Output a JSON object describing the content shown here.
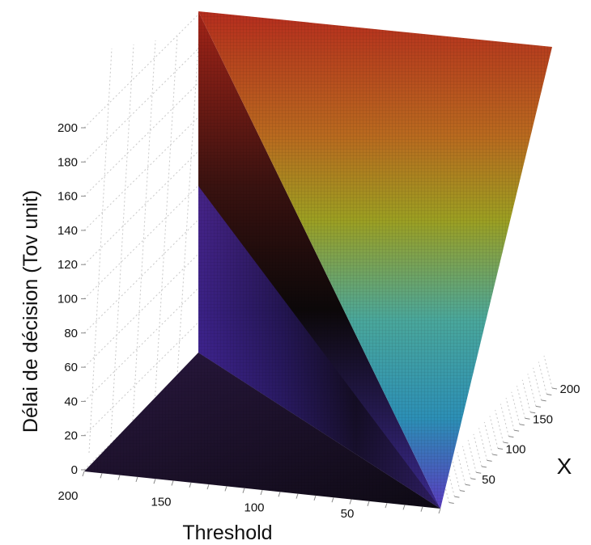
{
  "chart_data": {
    "type": "surface3d",
    "title": "",
    "xlabel": "Threshold",
    "ylabel": "X",
    "zlabel": "Délai de décision (Tov unit)",
    "xlim": [
      0,
      200
    ],
    "ylim": [
      0,
      200
    ],
    "zlim": [
      0,
      200
    ],
    "x_ticks": [
      "200",
      "150",
      "100",
      "50"
    ],
    "y_ticks": [
      "50",
      "100",
      "150",
      "200"
    ],
    "z_ticks": [
      "0",
      "20",
      "40",
      "60",
      "80",
      "100",
      "120",
      "140",
      "160",
      "180",
      "200"
    ],
    "surface": {
      "description_rule": "z = 0 where X < Threshold, z = X where X >= Threshold",
      "corners": [
        {
          "threshold": 0,
          "x": 0,
          "z": 0
        },
        {
          "threshold": 200,
          "x": 0,
          "z": 0
        },
        {
          "threshold": 200,
          "x": 200,
          "z": 200
        },
        {
          "threshold": 0,
          "x": 200,
          "z": 200
        }
      ]
    },
    "colormap": [
      "#1a0f24",
      "#3a2a8c",
      "#5030b0",
      "#2aa6a0",
      "#8abf2a",
      "#b8a020",
      "#c0401e"
    ],
    "grid": true
  }
}
